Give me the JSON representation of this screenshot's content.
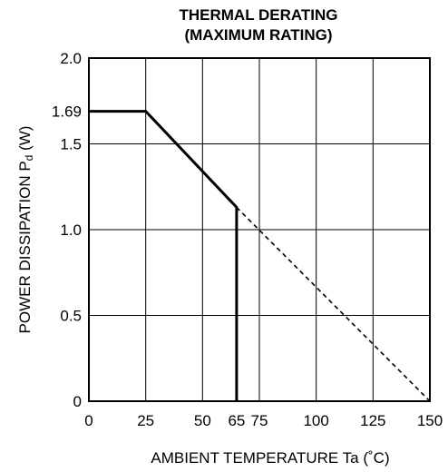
{
  "chart_data": {
    "type": "line",
    "title": [
      "THERMAL DERATING",
      "(MAXIMUM RATING)"
    ],
    "xlabel": "AMBIENT TEMPERATURE  Ta (˚C)",
    "ylabel": {
      "prefix": "POWER  DISSIPATION  P",
      "subscript": "d",
      "suffix": " (W)"
    },
    "xlim": [
      0,
      150
    ],
    "ylim": [
      0,
      2.0
    ],
    "xticks": [
      0,
      25,
      50,
      65,
      75,
      100,
      125,
      150
    ],
    "xtick_labels": [
      "0",
      "25",
      "50",
      "65",
      "75",
      "100",
      "125",
      "150"
    ],
    "xgrid": [
      25,
      50,
      75,
      100,
      125
    ],
    "yticks": [
      0,
      0.5,
      1.0,
      1.5,
      1.69,
      2.0
    ],
    "ytick_labels": [
      "0",
      "0.5",
      "1.0",
      "1.5",
      "1.69",
      "2.0"
    ],
    "ygrid": [
      0.5,
      1.0,
      1.5
    ],
    "grid": true,
    "series": [
      {
        "style": "solid-thick",
        "points": [
          [
            0,
            1.69
          ],
          [
            25,
            1.69
          ],
          [
            65,
            1.13
          ],
          [
            65,
            0
          ]
        ]
      },
      {
        "style": "dashed",
        "points": [
          [
            65,
            1.13
          ],
          [
            150,
            0
          ]
        ]
      }
    ],
    "colors": {
      "line": "#000000",
      "grid": "#000000",
      "background": "#ffffff"
    }
  }
}
